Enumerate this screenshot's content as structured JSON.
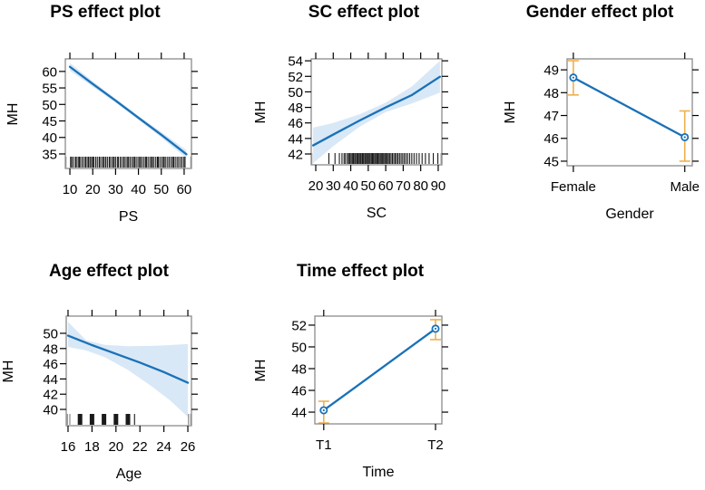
{
  "figure": {
    "description": "Predictor effect plots for MH (five panels)",
    "background": "#FFFFFF"
  },
  "colors": {
    "fit_line": "#1971B8",
    "confidence_band": "#D9E8F6",
    "error_bar": "#EFB04E",
    "panel_border": "#8C8C8C",
    "tick": "#000000",
    "text": "#000000",
    "rug": "#1A1A1A",
    "rug_edge": "#9A9A9A"
  },
  "chart_data": [
    {
      "id": "ps",
      "type": "line-band",
      "title": "PS effect plot",
      "xlabel": "PS",
      "ylabel": "MH",
      "xlim": [
        8.0,
        63.2
      ],
      "ylim": [
        30.6,
        63.8
      ],
      "xticks": [
        10,
        20,
        30,
        40,
        50,
        60
      ],
      "yticks": [
        35,
        40,
        45,
        50,
        55,
        60
      ],
      "line": {
        "x": [
          10,
          20,
          30,
          40,
          50,
          61
        ],
        "y": [
          61.4,
          56.2,
          51.15,
          45.95,
          40.8,
          34.9
        ]
      },
      "band": {
        "x": [
          10,
          20,
          30,
          40,
          50,
          61
        ],
        "upper": [
          62.6,
          57.05,
          51.75,
          46.55,
          41.65,
          36.15
        ],
        "lower": [
          60.2,
          55.35,
          50.55,
          45.35,
          39.95,
          33.65
        ]
      },
      "rug": [
        10.3,
        10.8,
        11.5,
        12.4,
        12.8,
        13.6,
        14.1,
        14.4,
        15.2,
        15.9,
        16.7,
        17.1,
        17.9,
        18.3,
        19.0,
        19.6,
        20.2,
        20.5,
        21.3,
        22.0,
        22.8,
        23.1,
        23.9,
        24.6,
        25.0,
        25.7,
        26.4,
        27.2,
        27.5,
        28.3,
        29.0,
        29.4,
        30.1,
        30.9,
        31.2,
        32.0,
        32.7,
        33.5,
        33.8,
        34.6,
        35.3,
        35.7,
        36.4,
        37.2,
        37.9,
        38.3,
        39.0,
        39.8,
        40.5,
        40.9,
        41.6,
        42.4,
        43.1,
        43.5,
        44.2,
        45.0,
        45.7,
        46.1,
        46.8,
        47.6,
        48.3,
        48.7,
        49.4,
        50.2,
        50.9,
        51.3,
        52.0,
        52.8,
        53.5,
        54.3,
        55.0,
        55.4,
        56.1,
        56.9,
        57.6,
        58.4,
        59.1,
        59.9,
        60.4
      ],
      "rug_edge": [
        8.25,
        62.95
      ]
    },
    {
      "id": "sc",
      "type": "line-band",
      "title": "SC effect plot",
      "xlabel": "SC",
      "ylabel": "MH",
      "xlim": [
        17.4,
        92.1
      ],
      "ylim": [
        40.6,
        54.25
      ],
      "xticks": [
        20,
        30,
        40,
        50,
        60,
        70,
        80,
        90
      ],
      "yticks": [
        42,
        44,
        46,
        48,
        50,
        52,
        54
      ],
      "line": {
        "x": [
          18.5,
          30,
          45,
          60,
          75,
          91
        ],
        "y": [
          43.1,
          44.5,
          46.3,
          48.0,
          49.6,
          51.95
        ]
      },
      "band": {
        "x": [
          18.5,
          30,
          45,
          60,
          75,
          91
        ],
        "upper": [
          45.4,
          46.0,
          47.1,
          48.6,
          50.7,
          54.0
        ],
        "lower": [
          40.8,
          43.0,
          45.5,
          47.4,
          48.5,
          49.9
        ]
      },
      "rug": [
        27.5,
        31.0,
        33.5,
        35.0,
        36.2,
        37.0,
        38.1,
        38.8,
        39.5,
        40.2,
        40.9,
        41.5,
        42.2,
        42.8,
        43.5,
        44.1,
        44.8,
        45.4,
        46.0,
        46.7,
        47.3,
        48.0,
        48.6,
        49.2,
        49.9,
        50.5,
        51.1,
        51.8,
        52.4,
        53.0,
        53.7,
        54.3,
        55.0,
        55.6,
        56.2,
        56.9,
        57.5,
        58.2,
        58.8,
        59.5,
        60.1,
        60.8,
        61.5,
        62.2,
        63.0,
        63.8,
        64.6,
        65.4,
        66.2,
        67.0,
        67.9,
        68.8,
        69.7,
        70.6,
        71.6,
        72.6,
        73.7,
        74.9,
        76.2,
        77.6,
        79.1,
        80.8,
        82.7,
        84.8,
        87.2,
        89.8
      ],
      "rug_edge": [
        17.7,
        91.7
      ]
    },
    {
      "id": "gender",
      "type": "point-ci",
      "title": "Gender effect plot",
      "xlabel": "Gender",
      "ylabel": "MH",
      "categories": [
        "Female",
        "Male"
      ],
      "values": [
        48.66,
        46.05
      ],
      "ci_lower": [
        47.9,
        45.0
      ],
      "ci_upper": [
        49.4,
        47.2
      ],
      "ylim": [
        44.8,
        49.48
      ],
      "yticks": [
        45,
        46,
        47,
        48,
        49
      ]
    },
    {
      "id": "age",
      "type": "line-band",
      "title": "Age effect plot",
      "xlabel": "Age",
      "ylabel": "MH",
      "xlim": [
        15.85,
        26.3
      ],
      "ylim": [
        37.86,
        52.26
      ],
      "xticks": [
        16,
        18,
        20,
        22,
        24,
        26
      ],
      "yticks": [
        40,
        42,
        44,
        46,
        48,
        50
      ],
      "line": {
        "x": [
          16,
          18,
          20,
          22,
          24,
          26
        ],
        "y": [
          49.7,
          48.45,
          47.3,
          46.15,
          44.9,
          43.5
        ]
      },
      "band": {
        "x": [
          16,
          17.5,
          19,
          21,
          23,
          24.5,
          26
        ],
        "upper": [
          51.5,
          49.1,
          48.5,
          48.3,
          48.35,
          48.45,
          48.6
        ],
        "lower": [
          48.2,
          47.75,
          46.9,
          45.2,
          43.0,
          41.2,
          39.0
        ]
      },
      "rug": [
        21.55
      ],
      "rug_blocks": [
        17,
        18,
        19,
        20,
        21
      ],
      "rug_edge": [
        15.95,
        16.15,
        26.05,
        26.25
      ]
    },
    {
      "id": "time",
      "type": "point-ci",
      "title": "Time effect plot",
      "xlabel": "Time",
      "ylabel": "MH",
      "categories": [
        "T1",
        "T2"
      ],
      "values": [
        44.17,
        51.67
      ],
      "ci_lower": [
        43.0,
        50.67
      ],
      "ci_upper": [
        45.0,
        52.5
      ],
      "ylim": [
        42.92,
        52.83
      ],
      "yticks": [
        44,
        46,
        48,
        50,
        52
      ]
    }
  ]
}
